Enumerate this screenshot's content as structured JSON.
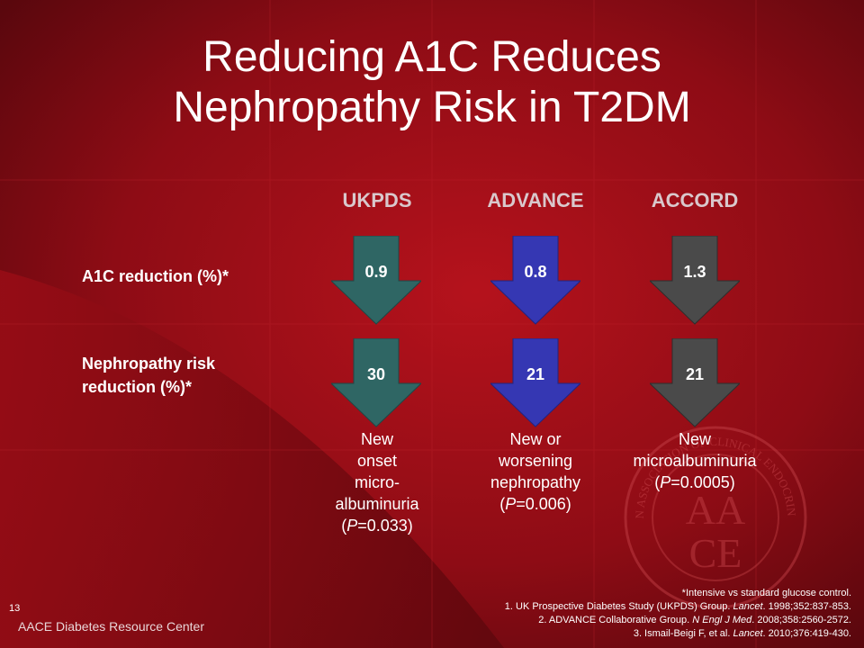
{
  "slide": {
    "title_line1": "Reducing A1C Reduces",
    "title_line2": "Nephropathy Risk in T2DM",
    "number": "13",
    "brand": "AACE Diabetes Resource Center"
  },
  "columns": [
    {
      "name": "UKPDS",
      "color": "#2f6664"
    },
    {
      "name": "ADVANCE",
      "color": "#3537b3"
    },
    {
      "name": "ACCORD",
      "color": "#4a4a4a"
    }
  ],
  "rows": {
    "a1c_label": "A1C reduction (%)*",
    "neph_label_line1": "Nephropathy risk",
    "neph_label_line2": "reduction (%)*"
  },
  "a1c_values": [
    "0.9",
    "0.8",
    "1.3"
  ],
  "neph_values": [
    "30",
    "21",
    "21"
  ],
  "outcomes": [
    {
      "lines": [
        "New",
        "onset",
        "micro-",
        "albuminuria"
      ],
      "p_prefix": "(",
      "p_letter": "P",
      "p_value": "=0.033)"
    },
    {
      "lines": [
        "New or",
        "worsening",
        "nephropathy"
      ],
      "p_prefix": "(",
      "p_letter": "P",
      "p_value": "=0.006)"
    },
    {
      "lines": [
        "New",
        "microalbuminuria"
      ],
      "p_prefix": "(",
      "p_letter": "P",
      "p_value": "=0.0005)"
    }
  ],
  "footnotes": {
    "note": "*Intensive vs standard glucose control.",
    "ref1_a": "1. UK Prospective Diabetes Study (UKPDS) Group. ",
    "ref1_journal": "Lancet",
    "ref1_b": ". 1998;352:837-853.",
    "ref2_a": "2. ADVANCE Collaborative Group. ",
    "ref2_journal": "N Engl J Med",
    "ref2_b": ". 2008;358:2560-2572.",
    "ref3_a": "3. Ismail-Beigi F, et al. ",
    "ref3_journal": "Lancet",
    "ref3_b": ". 2010;376:419-430."
  },
  "seal": {
    "top_text": "AMERICAN ASSOCIATION OF CLINICAL ENDOCRINOLOGISTS",
    "letters_top": "AA",
    "letters_bottom": "CE"
  }
}
